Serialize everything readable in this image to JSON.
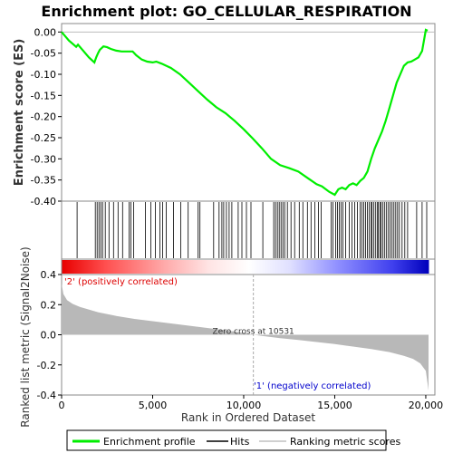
{
  "chart_data": {
    "type": "line",
    "title": "Enrichment plot: GO_CELLULAR_RESPIRATION",
    "es_panel": {
      "ylabel": "Enrichment score (ES)",
      "ylim": [
        -0.4,
        0.02
      ],
      "yticks": [
        0.0,
        -0.05,
        -0.1,
        -0.15,
        -0.2,
        -0.25,
        -0.3,
        -0.35,
        -0.4
      ],
      "ytick_labels": [
        "0.00",
        "-0.05",
        "-0.10",
        "-0.15",
        "-0.20",
        "-0.25",
        "-0.30",
        "-0.35",
        "-0.40"
      ],
      "series": [
        {
          "name": "Enrichment profile",
          "color": "#00ee00",
          "x": [
            0,
            400,
            800,
            900,
            1200,
            1500,
            1800,
            1900,
            2000,
            2100,
            2200,
            2300,
            2500,
            2700,
            3000,
            3300,
            3600,
            3900,
            4100,
            4400,
            4700,
            5000,
            5200,
            5500,
            6000,
            6500,
            7000,
            7500,
            8000,
            8500,
            9000,
            9500,
            10000,
            10500,
            11000,
            11500,
            12000,
            12500,
            13000,
            13500,
            14000,
            14300,
            14700,
            15000,
            15200,
            15400,
            15600,
            15800,
            16000,
            16200,
            16400,
            16600,
            16800,
            17000,
            17200,
            17400,
            17600,
            17800,
            18000,
            18200,
            18400,
            18600,
            18800,
            19000,
            19200,
            19400,
            19600,
            19800,
            20000,
            20100
          ],
          "y": [
            0.0,
            -0.02,
            -0.035,
            -0.03,
            -0.045,
            -0.06,
            -0.072,
            -0.06,
            -0.05,
            -0.042,
            -0.038,
            -0.034,
            -0.036,
            -0.04,
            -0.044,
            -0.046,
            -0.046,
            -0.046,
            -0.055,
            -0.065,
            -0.07,
            -0.072,
            -0.07,
            -0.075,
            -0.085,
            -0.1,
            -0.12,
            -0.14,
            -0.16,
            -0.178,
            -0.192,
            -0.21,
            -0.23,
            -0.252,
            -0.275,
            -0.3,
            -0.315,
            -0.322,
            -0.33,
            -0.345,
            -0.36,
            -0.365,
            -0.378,
            -0.385,
            -0.372,
            -0.368,
            -0.372,
            -0.362,
            -0.358,
            -0.362,
            -0.352,
            -0.345,
            -0.33,
            -0.3,
            -0.275,
            -0.255,
            -0.235,
            -0.21,
            -0.18,
            -0.15,
            -0.12,
            -0.1,
            -0.08,
            -0.072,
            -0.07,
            -0.065,
            -0.06,
            -0.045,
            0.005,
            0.003
          ]
        }
      ],
      "hits": [
        850,
        1850,
        1950,
        2050,
        2150,
        2250,
        2400,
        2600,
        2850,
        3100,
        3350,
        3700,
        3800,
        3950,
        4600,
        4900,
        5150,
        5400,
        5550,
        5750,
        6150,
        6550,
        6950,
        7500,
        7600,
        8350,
        8650,
        8800,
        8900,
        9050,
        9200,
        9350,
        9700,
        9900,
        10150,
        10400,
        11050,
        11650,
        11750,
        11850,
        11950,
        12050,
        12150,
        12250,
        12400,
        12600,
        12800,
        13050,
        13250,
        13500,
        13700,
        13900,
        14100,
        14250,
        14800,
        14900,
        15050,
        15150,
        15250,
        15350,
        15450,
        15600,
        15800,
        15950,
        16100,
        16250,
        16400,
        16500,
        16600,
        16700,
        16800,
        16900,
        17000,
        17050,
        17150,
        17250,
        17350,
        17400,
        17500,
        17550,
        17650,
        17750,
        17850,
        17950,
        18050,
        18150,
        18250,
        18350,
        18450,
        18550,
        18700,
        18850,
        19000,
        19500,
        19800,
        20050
      ]
    },
    "ranked_panel": {
      "ylabel": "Ranked list metric (Signal2Noise)",
      "xlabel": "Rank in Ordered Dataset",
      "ylim": [
        -0.4,
        0.4
      ],
      "yticks": [
        0.4,
        0.2,
        0.0,
        -0.2,
        -0.4
      ],
      "ytick_labels": [
        "0.4",
        "0.2",
        "0.0",
        "-0.2",
        "-0.4"
      ],
      "x_ticks": [
        0,
        5000,
        10000,
        15000,
        20000
      ],
      "x_tick_labels": [
        "0",
        "5,000",
        "10,000",
        "15,000",
        "20,000"
      ],
      "xlim": [
        0,
        20500
      ],
      "metric_x": [
        0,
        100,
        300,
        600,
        1000,
        2000,
        3000,
        4000,
        5000,
        6000,
        7000,
        8000,
        9000,
        10000,
        10531,
        11000,
        12000,
        13000,
        14000,
        15000,
        16000,
        17000,
        18000,
        18800,
        19300,
        19700,
        20000,
        20150
      ],
      "metric_y": [
        0.34,
        0.27,
        0.23,
        0.205,
        0.185,
        0.15,
        0.125,
        0.105,
        0.09,
        0.075,
        0.06,
        0.045,
        0.03,
        0.012,
        0.0,
        -0.008,
        -0.022,
        -0.035,
        -0.048,
        -0.062,
        -0.078,
        -0.095,
        -0.115,
        -0.14,
        -0.16,
        -0.19,
        -0.24,
        -0.37
      ],
      "zero_cross_label": "Zero cross at 10531",
      "zero_cross": 10531,
      "pos_label": "'2' (positively correlated)",
      "neg_label": "'1' (negatively correlated)",
      "pos_color": "#dd0000",
      "neg_color": "#0000cc"
    },
    "legend": {
      "placement": "bottom",
      "items": [
        {
          "label": "Enrichment profile",
          "color": "#00ee00"
        },
        {
          "label": "Hits",
          "color": "#000000"
        },
        {
          "label": "Ranking metric scores",
          "color": "#c0c0c0"
        }
      ]
    }
  }
}
